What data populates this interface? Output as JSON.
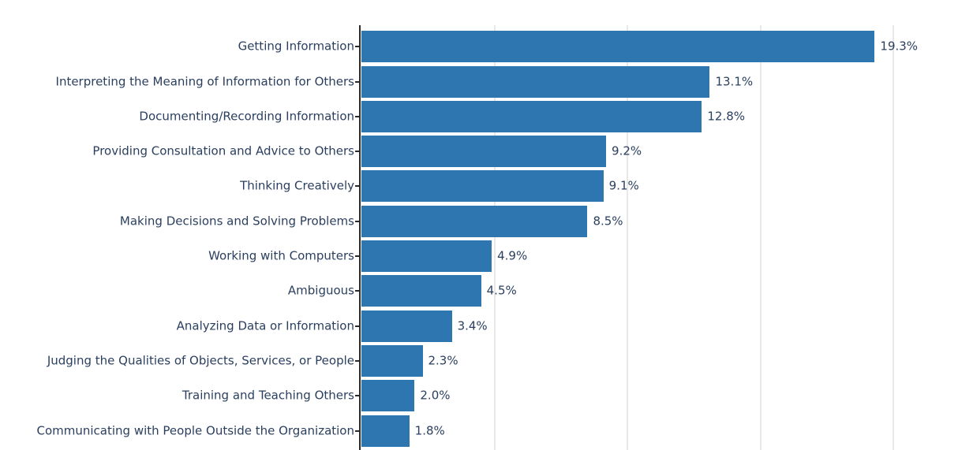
{
  "chart_data": {
    "type": "bar",
    "orientation": "horizontal",
    "title": "",
    "xlabel": "",
    "ylabel": "",
    "categories": [
      "Getting Information",
      "Interpreting the Meaning of Information for Others",
      "Documenting/Recording Information",
      "Providing Consultation and Advice to Others",
      "Thinking Creatively",
      "Making Decisions and Solving Problems",
      "Working with Computers",
      "Ambiguous",
      "Analyzing Data or Information",
      "Judging the Qualities of Objects, Services, or People",
      "Training and Teaching Others",
      "Communicating with People Outside the Organization"
    ],
    "values": [
      19.3,
      13.1,
      12.8,
      9.2,
      9.1,
      8.5,
      4.9,
      4.5,
      3.4,
      2.3,
      2.0,
      1.8
    ],
    "value_labels": [
      "19.3%",
      "13.1%",
      "12.8%",
      "9.2%",
      "9.1%",
      "8.5%",
      "4.9%",
      "4.5%",
      "3.4%",
      "2.3%",
      "2.0%",
      "1.8%"
    ],
    "xlim": [
      0,
      22.5
    ],
    "grid": true,
    "gridline_values_pct": [
      5,
      10,
      15,
      20
    ],
    "legend": "none",
    "colors": {
      "bar": "#2d76b0",
      "label_text": "#2a3f5f",
      "value_text": "#2a3f5f",
      "gridline": "#e8e8e8",
      "axis_line": "#2b2b2b",
      "tick": "#2b2b2b",
      "background": "#ffffff"
    }
  }
}
